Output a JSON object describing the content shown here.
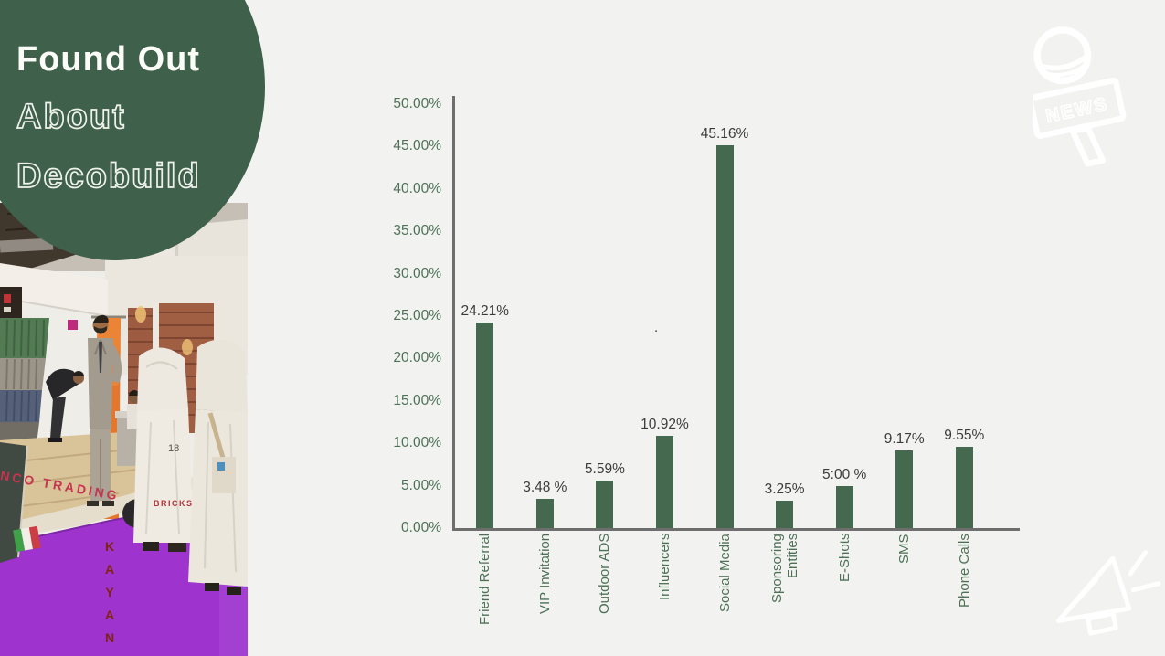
{
  "slide": {
    "background": "#f2f3f1",
    "accent_green": "#3f604a",
    "title": {
      "line1": "Found Out",
      "line2": "About",
      "line3": "Decobuild"
    }
  },
  "photo": {
    "description": "exhibition-hall-booth-with-visitors-purple-carpet",
    "signs": {
      "fascia": "NCO  TRADING",
      "wall": "BRICKS",
      "banner_vertical": "KAYAN",
      "booth_number": "18"
    },
    "colors": {
      "carpet": "#9d2fd5",
      "banner": "#e8762c",
      "flag": "italy"
    }
  },
  "icons": {
    "news_label": "NEWS"
  },
  "chart_data": {
    "type": "bar",
    "title": "",
    "xlabel": "",
    "ylabel": "",
    "categories": [
      "Friend Referral",
      "VIP Invitation",
      "Outdoor ADS",
      "Influencers",
      "Social Media",
      "Sponsoring Entities",
      "E-Shots",
      "SMS",
      "Phone Calls"
    ],
    "x_tick_lines": [
      [
        "Friend Referral"
      ],
      [
        "VIP Invitation"
      ],
      [
        "Outdoor ADS"
      ],
      [
        "Influencers"
      ],
      [
        "Social Media"
      ],
      [
        "Sponsoring",
        "Entities"
      ],
      [
        "E-Shots"
      ],
      [
        "SMS"
      ],
      [
        "Phone Calls"
      ]
    ],
    "values": [
      24.21,
      3.48,
      5.59,
      10.92,
      45.16,
      3.25,
      5.0,
      9.17,
      9.55
    ],
    "value_labels": [
      "24.21%",
      "3.48 %",
      "5.59%",
      "10.92%",
      "45.16%",
      "3.25%",
      "5:00 %",
      "9.17%",
      "9.55%"
    ],
    "y_ticks": [
      "50.00%",
      "45.00%",
      "40.00%",
      "35.00%",
      "30.00%",
      "25.00%",
      "20.00%",
      "15.00%",
      "10.00%",
      "5.00%",
      "0.00%"
    ],
    "ylim": [
      0,
      50
    ],
    "grid": false,
    "legend": false,
    "bar_color": "#45694e",
    "tick_color": "#4e7156",
    "stray_dot": "."
  }
}
